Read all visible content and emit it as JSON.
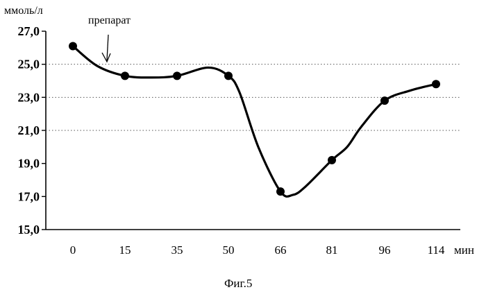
{
  "chart_data": {
    "type": "line",
    "title": "",
    "ylabel": "ммоль/л",
    "xlabel": "мин",
    "caption": "Фиг.5",
    "annotation": "препарат",
    "categories": [
      "0",
      "15",
      "35",
      "50",
      "66",
      "81",
      "96",
      "114"
    ],
    "y_ticks": [
      "27,0",
      "25,0",
      "23,0",
      "21,0",
      "19,0",
      "17,0",
      "15,0"
    ],
    "ylim": [
      15,
      27
    ],
    "grid_lines": [
      21,
      23,
      25
    ],
    "grid": "dotted horizontal",
    "series": [
      {
        "values": [
          26.1,
          24.3,
          24.3,
          24.3,
          17.3,
          19.2,
          22.8,
          23.8
        ]
      }
    ],
    "color": "#000000"
  }
}
